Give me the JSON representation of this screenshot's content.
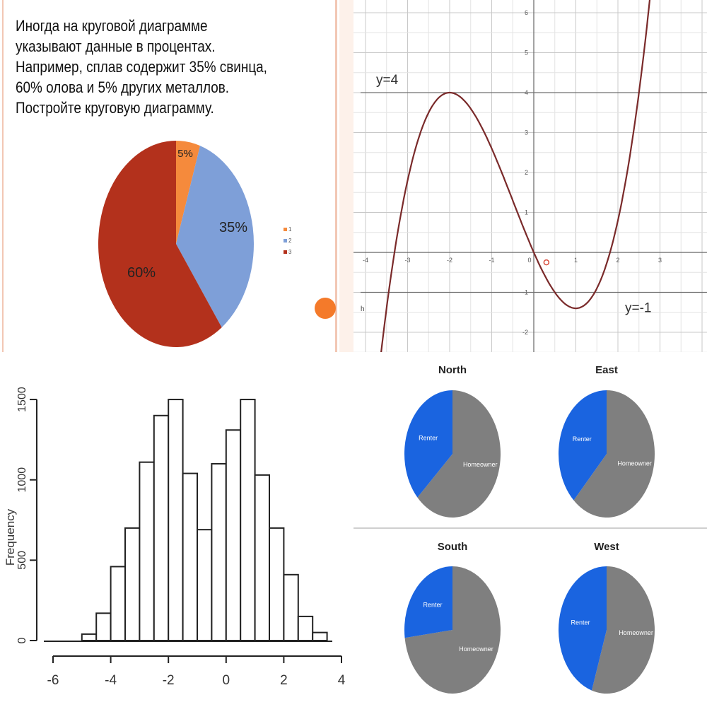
{
  "task_text": [
    "Иногда  на круговой диаграмме",
    "указывают данные в процентах.",
    "Например, сплав содержит 35% свинца,",
    "60% олова и 5% других металлов.",
    "Постройте круговую диаграмму."
  ],
  "colors": {
    "orange": "#f58a3c",
    "blue": "#7e9fd8",
    "red": "#b3311c",
    "curve": "#7a2a2a",
    "renter": "#1a64e0",
    "homeowner": "#7f7f7f",
    "marker": "#f47a2a"
  },
  "chart_data": [
    {
      "id": "alloy_pie",
      "type": "pie",
      "title": "",
      "slices": [
        {
          "legend": "1",
          "label": "5%",
          "value": 5
        },
        {
          "legend": "2",
          "label": "35%",
          "value": 35
        },
        {
          "legend": "3",
          "label": "60%",
          "value": 60
        }
      ]
    },
    {
      "id": "function_plot",
      "type": "line",
      "xlim": [
        -4.2,
        4.1
      ],
      "ylim": [
        -2.4,
        6.2
      ],
      "xticks": [
        "-4",
        "-3",
        "-2",
        "-1",
        "0",
        "1",
        "2",
        "3"
      ],
      "yticks": [
        "-2",
        "-1",
        "1",
        "2",
        "3",
        "4",
        "5",
        "6"
      ],
      "hlines": [
        {
          "y": 4,
          "label": "y=4"
        },
        {
          "y": -1,
          "label": "y=-1"
        }
      ],
      "curve_label": "h",
      "series": [
        {
          "name": "h",
          "x": [
            -4.2,
            -4,
            -3,
            -2,
            -1,
            0,
            1,
            2,
            3,
            3.8
          ],
          "y": [
            -1.1,
            -0.4,
            2.8,
            4.0,
            2.2,
            0.0,
            -1.0,
            0.0,
            2.6,
            6.0
          ]
        }
      ]
    },
    {
      "id": "histogram",
      "type": "bar",
      "xlabel": "",
      "ylabel": "Frequency",
      "xlim": [
        -6,
        4
      ],
      "ylim": [
        0,
        1500
      ],
      "xticks": [
        "-6",
        "-4",
        "-2",
        "0",
        "2",
        "4"
      ],
      "yticks": [
        "0",
        "500",
        "1000",
        "1500"
      ],
      "bin_width": 0.5,
      "bins_start": [
        -5.0,
        -4.5,
        -4.0,
        -3.5,
        -3.0,
        -2.5,
        -2.0,
        -1.5,
        -1.0,
        -0.5,
        0.0,
        0.5,
        1.0,
        1.5,
        2.0,
        2.5,
        3.0
      ],
      "values": [
        40,
        170,
        460,
        700,
        1110,
        1400,
        1500,
        1040,
        690,
        1100,
        1310,
        1500,
        1030,
        700,
        410,
        150,
        50
      ]
    },
    {
      "id": "region_pies",
      "type": "pie",
      "charts": [
        {
          "title": "North",
          "slices": [
            {
              "label": "Renter",
              "value": 37
            },
            {
              "label": "Homeowner",
              "value": 63
            }
          ]
        },
        {
          "title": "East",
          "slices": [
            {
              "label": "Renter",
              "value": 38
            },
            {
              "label": "Homeowner",
              "value": 62
            }
          ]
        },
        {
          "title": "South",
          "slices": [
            {
              "label": "Renter",
              "value": 27
            },
            {
              "label": "Homeowner",
              "value": 73
            }
          ]
        },
        {
          "title": "West",
          "slices": [
            {
              "label": "Renter",
              "value": 45
            },
            {
              "label": "Homeowner",
              "value": 55
            }
          ]
        }
      ]
    }
  ]
}
